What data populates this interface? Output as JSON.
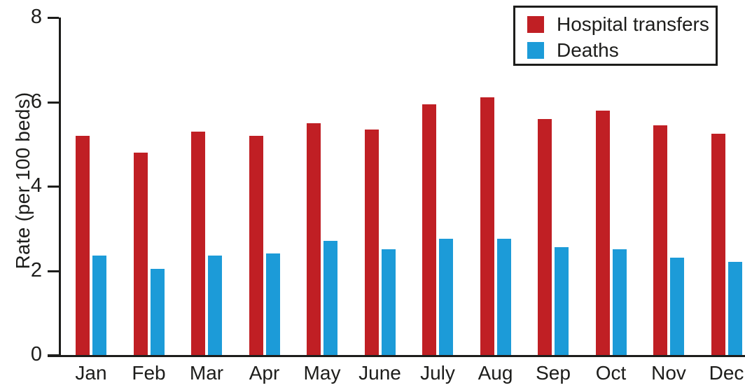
{
  "chart_data": {
    "type": "bar",
    "title": "",
    "xlabel": "",
    "ylabel": "Rate (per 100 beds)",
    "ylim": [
      0,
      8
    ],
    "yticks": [
      0,
      2,
      4,
      6,
      8
    ],
    "grid": false,
    "legend_position": "top-right",
    "categories": [
      "Jan",
      "Feb",
      "Mar",
      "Apr",
      "May",
      "June",
      "July",
      "Aug",
      "Sep",
      "Oct",
      "Nov",
      "Dec"
    ],
    "series": [
      {
        "name": "Hospital transfers",
        "color": "#c01f24",
        "values": [
          5.2,
          4.8,
          5.3,
          5.2,
          5.5,
          5.35,
          5.95,
          6.1,
          5.6,
          5.8,
          5.45,
          5.25
        ]
      },
      {
        "name": "Deaths",
        "color": "#1c9bd8",
        "values": [
          2.35,
          2.05,
          2.35,
          2.4,
          2.7,
          2.5,
          2.75,
          2.75,
          2.55,
          2.5,
          2.3,
          2.2
        ]
      }
    ],
    "axis_color": "#1d1d1b"
  },
  "legend": {
    "items": [
      {
        "label": "Hospital transfers",
        "swatch": "red-square"
      },
      {
        "label": "Deaths",
        "swatch": "blue-square"
      }
    ]
  }
}
